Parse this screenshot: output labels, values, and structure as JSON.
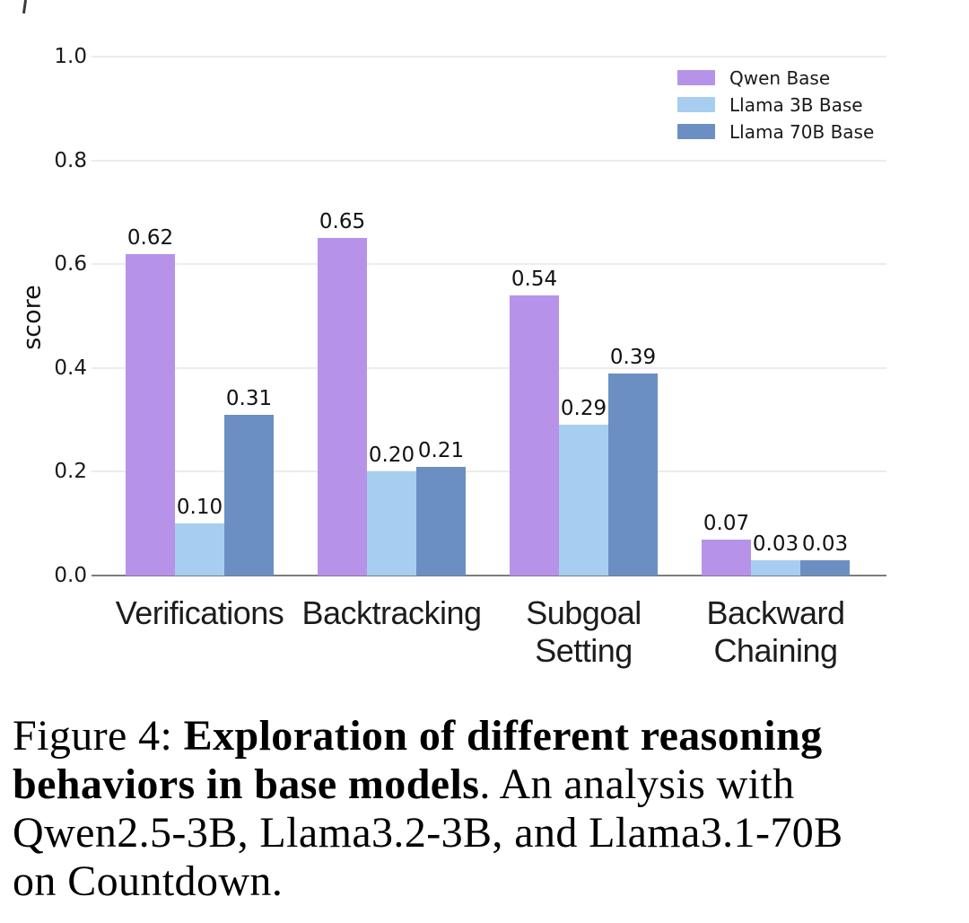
{
  "chart_data": {
    "type": "bar",
    "title": "",
    "xlabel": "",
    "ylabel": "score",
    "ylim": [
      0,
      1.0
    ],
    "yticks": [
      0.0,
      0.2,
      0.4,
      0.6,
      0.8,
      1.0
    ],
    "grid": true,
    "legend_position": "upper right",
    "value_labels": true,
    "categories": [
      "Verifications",
      "Backtracking",
      "Subgoal\nSetting",
      "Backward\nChaining"
    ],
    "series": [
      {
        "name": "Qwen Base",
        "color": "#b693e8",
        "values": [
          0.62,
          0.65,
          0.54,
          0.07
        ]
      },
      {
        "name": "Llama 3B Base",
        "color": "#a7cdf0",
        "values": [
          0.1,
          0.2,
          0.29,
          0.03
        ]
      },
      {
        "name": "Llama 70B Base",
        "color": "#6c8fc3",
        "values": [
          0.31,
          0.21,
          0.39,
          0.03
        ]
      }
    ]
  },
  "colors": {
    "gridline": "#ececec",
    "axis": "#7d7d7d",
    "tick_text": "#1a1a1a"
  },
  "caption": {
    "lines": [
      [
        {
          "text": "Figure 4: ",
          "bold": false
        },
        {
          "text": "Exploration of different reasoning",
          "bold": true
        }
      ],
      [
        {
          "text": "behaviors in base models",
          "bold": true
        },
        {
          "text": ". An analysis with",
          "bold": false
        }
      ],
      [
        {
          "text": "Qwen2.5-3B, Llama3.2-3B, and Llama3.1-70B",
          "bold": false
        }
      ],
      [
        {
          "text": "on Countdown.",
          "bold": false
        }
      ]
    ]
  }
}
